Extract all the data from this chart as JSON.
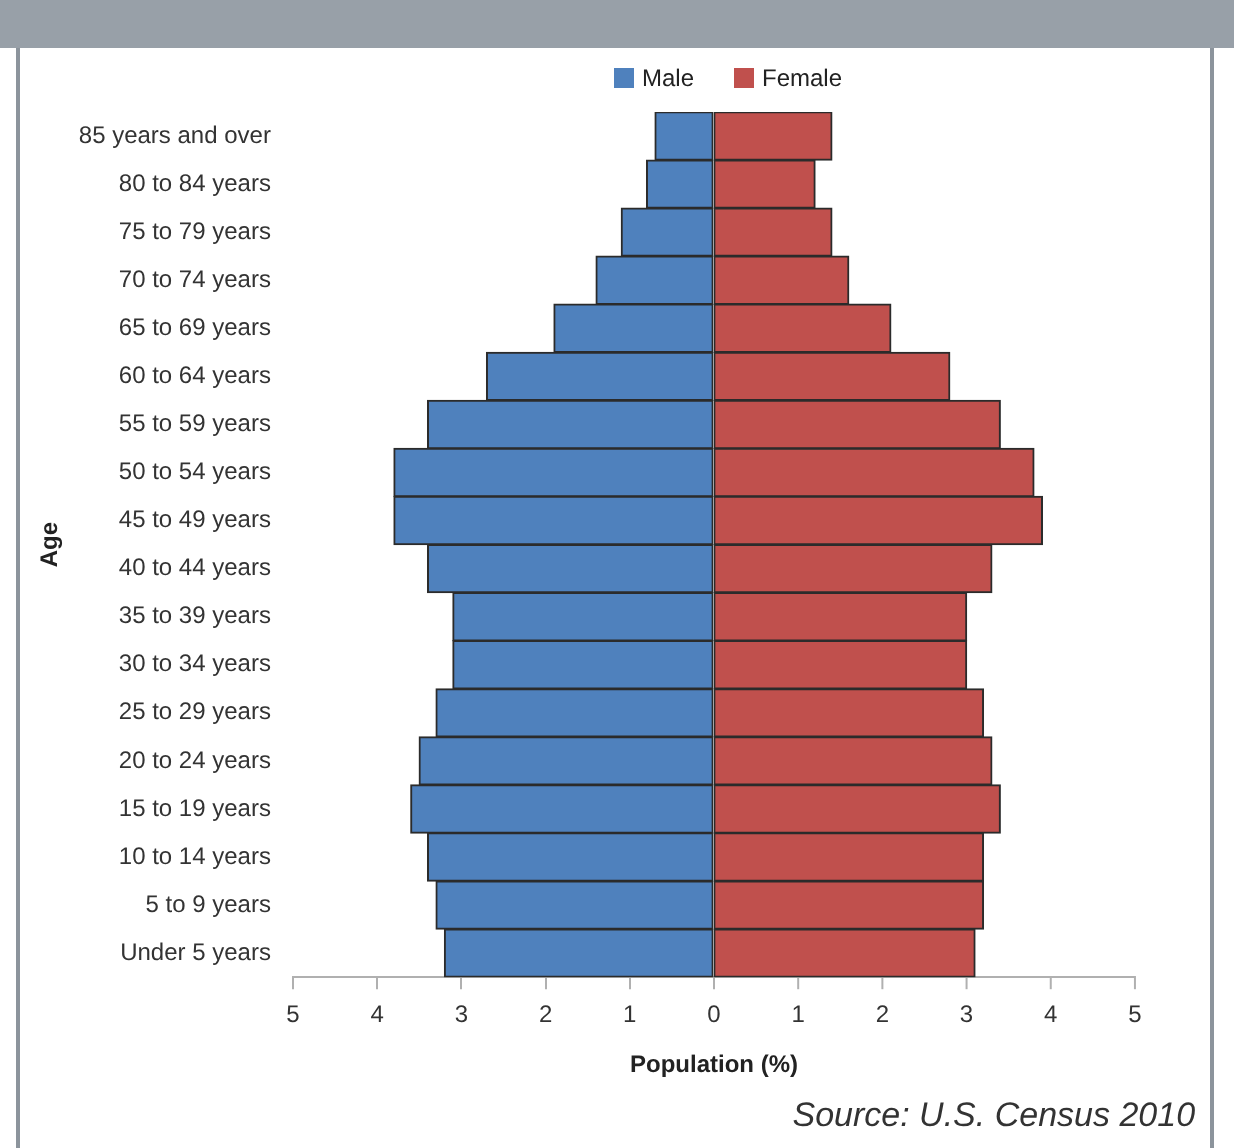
{
  "chart_data": [
    {
      "type": "bar",
      "orientation": "horizontal",
      "categories": [
        "85 years and over",
        "80 to 84 years",
        "75 to 79 years",
        "70 to 74 years",
        "65 to 69 years",
        "60 to 64 years",
        "55 to 59 years",
        "50 to 54 years",
        "45 to 49 years",
        "40 to 44 years",
        "35 to 39 years",
        "30 to 34 years",
        "25 to 29 years",
        "20 to 24 years",
        "15 to 19 years",
        "10 to 14 years",
        "5 to 9 years",
        "Under 5 years"
      ],
      "series": [
        {
          "name": "Male",
          "color": "#4f81bd",
          "values": [
            0.7,
            0.8,
            1.1,
            1.4,
            1.9,
            2.7,
            3.4,
            3.8,
            3.8,
            3.4,
            3.1,
            3.1,
            3.3,
            3.5,
            3.6,
            3.4,
            3.3,
            3.2
          ]
        }
      ],
      "xlim": [
        5,
        0
      ],
      "xticks": [
        5,
        4,
        3,
        2,
        1,
        0
      ],
      "xlabel": "Population (%)",
      "ylabel": "Age",
      "legend": "top right",
      "grid": false
    },
    {
      "type": "bar",
      "orientation": "horizontal",
      "categories": [
        null,
        null,
        null,
        null,
        null,
        null,
        null,
        null,
        null,
        null,
        null,
        null,
        null,
        null,
        null,
        null,
        null,
        null
      ],
      "series": [
        {
          "name": "Female",
          "color": "#c0504d",
          "values": [
            1.4,
            1.2,
            1.4,
            1.6,
            2.1,
            2.8,
            3.4,
            3.8,
            3.9,
            3.3,
            3.0,
            3.0,
            3.2,
            3.3,
            3.4,
            3.2,
            3.2,
            3.1
          ]
        }
      ],
      "xlim": [
        0,
        5
      ],
      "xticks": [
        1,
        2,
        3,
        4,
        5
      ],
      "tick_labels": "x",
      "legend": "top left",
      "grid": false,
      "annotations": [
        "Source: U.S. Census 2010"
      ]
    }
  ]
}
